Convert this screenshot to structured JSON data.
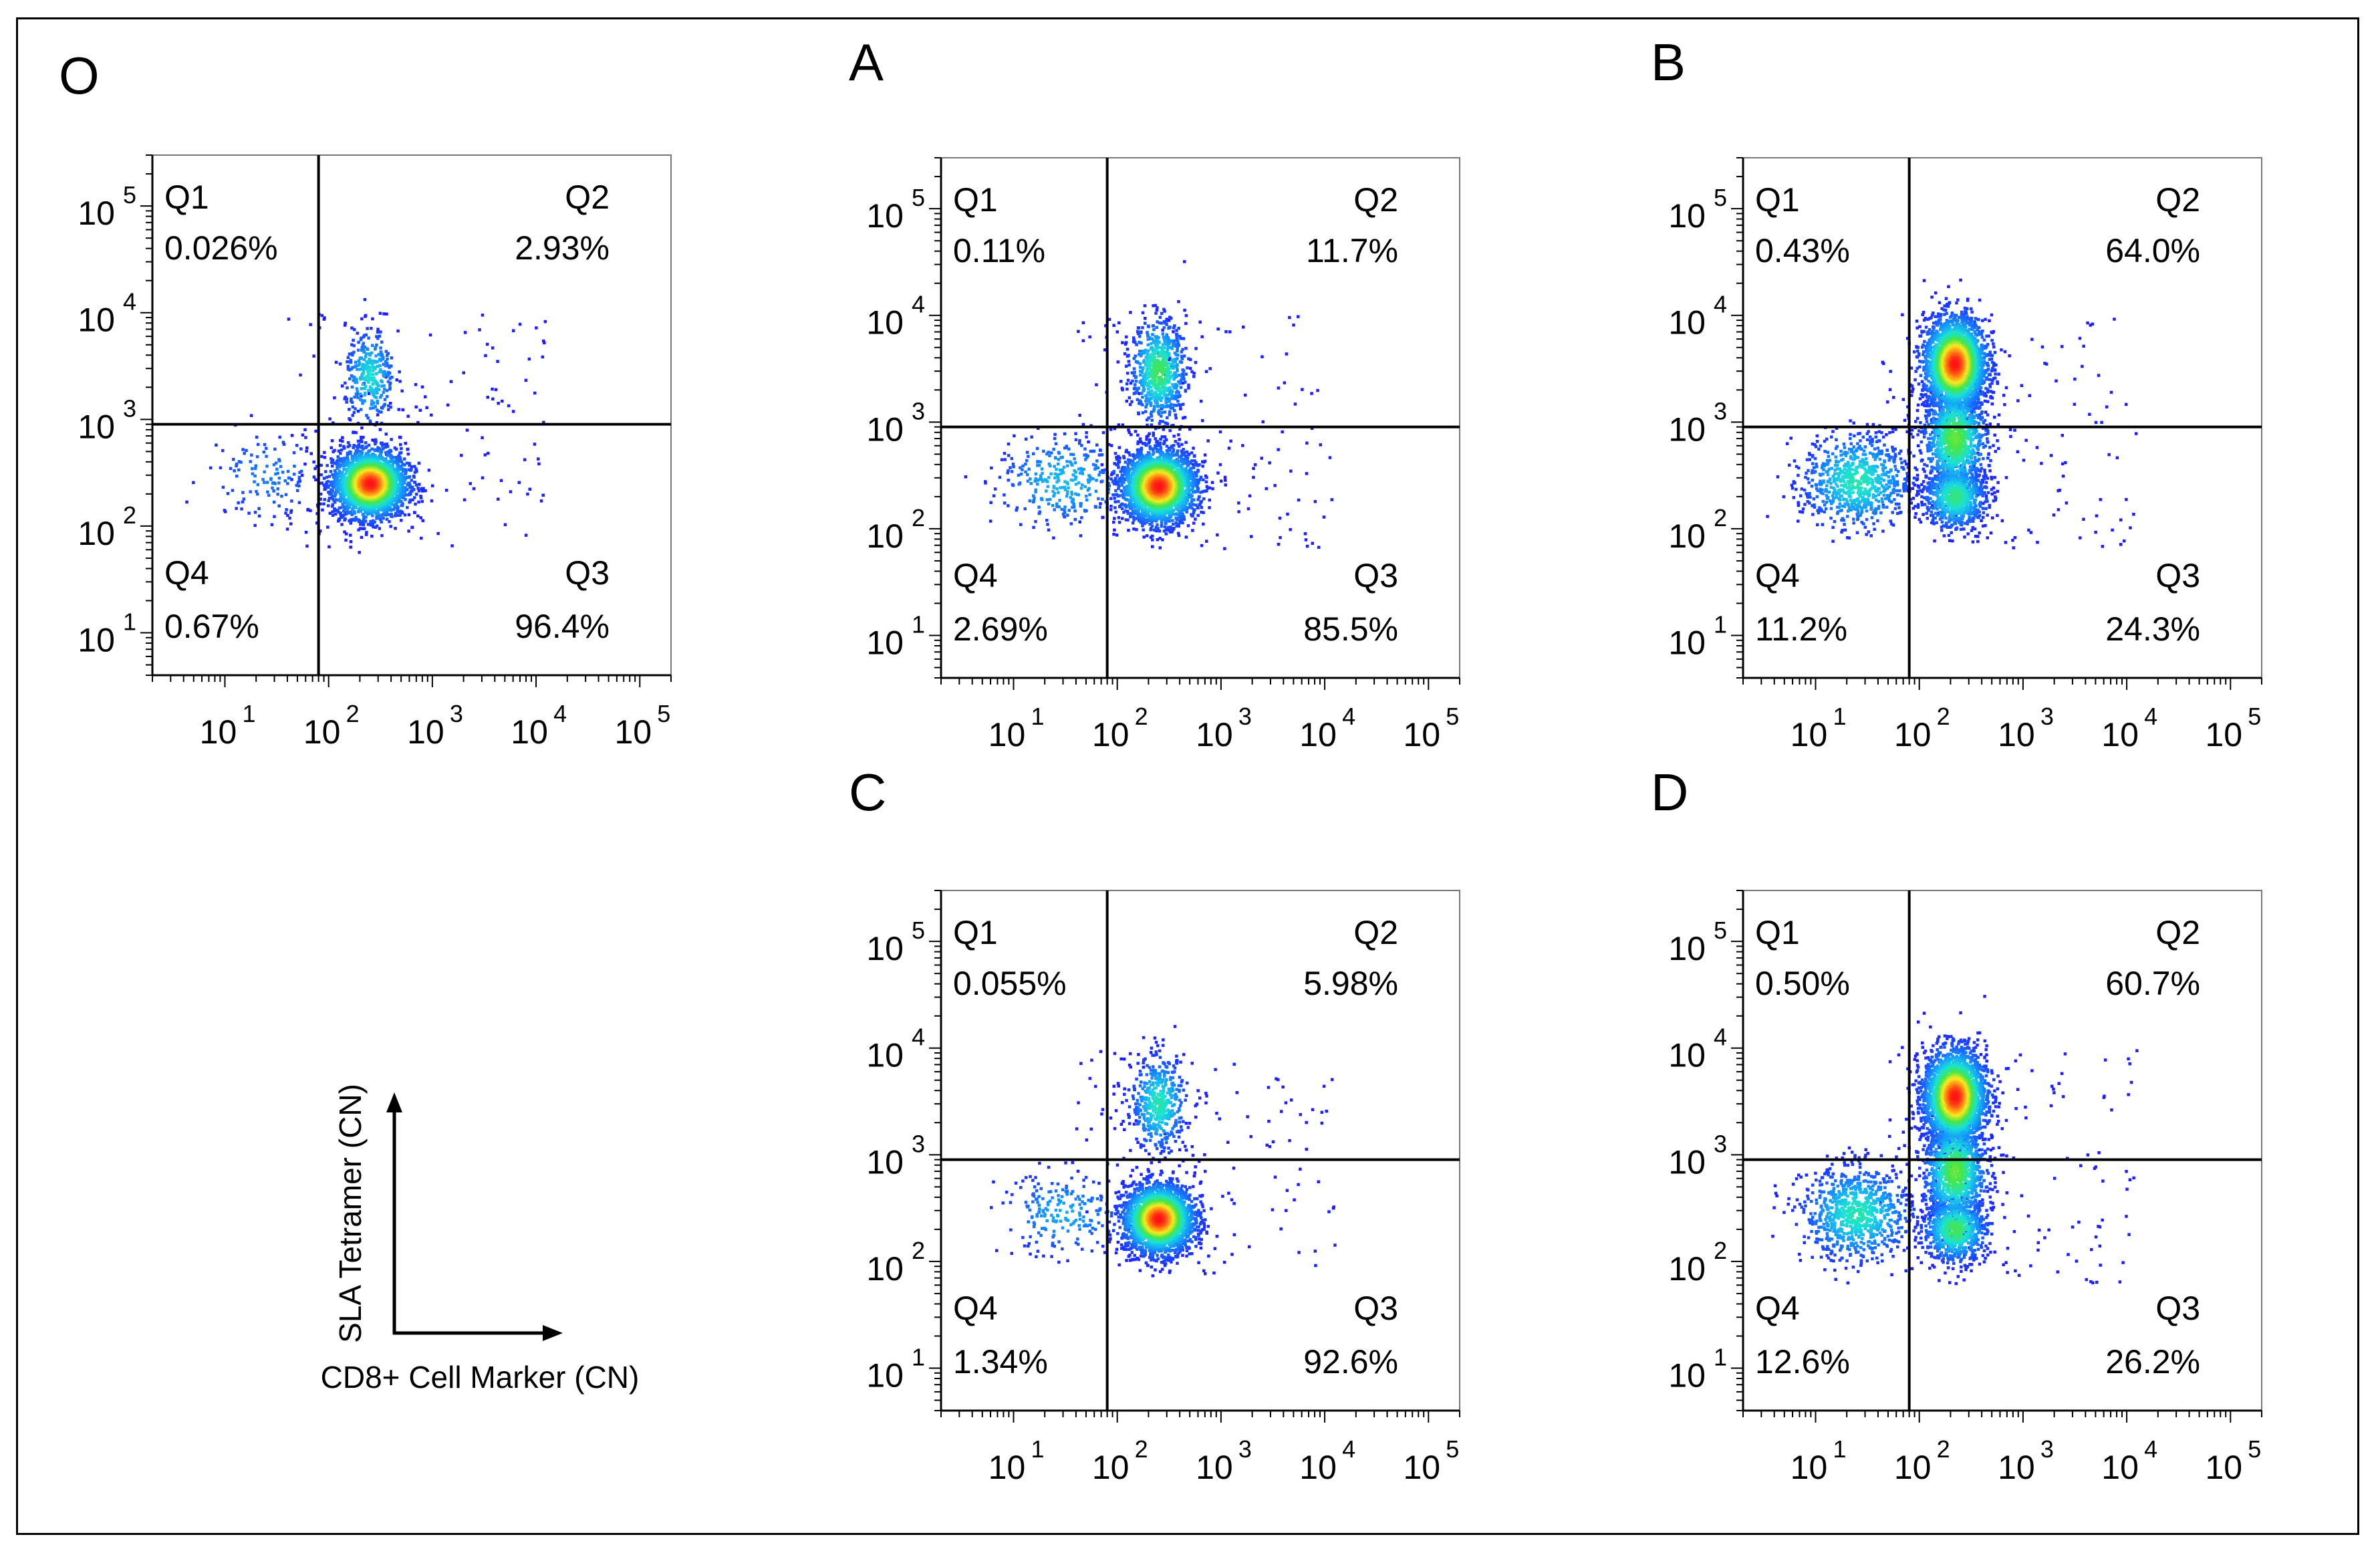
{
  "legend": {
    "y_label": "SLA Tetramer (CN)",
    "x_label": "CD8+ Cell Marker (CN)"
  },
  "tick_labels": {
    "base": "10",
    "exponents": [
      "1",
      "2",
      "3",
      "4",
      "5"
    ]
  },
  "colors": {
    "axis": "#000000",
    "density_low": "#1f28ff",
    "density_mid": "#19e5d2",
    "density_high": "#ff1a1a"
  },
  "chart_data": [
    {
      "type": "scatter",
      "panel": "O",
      "xscale": "log",
      "yscale": "log",
      "xlim": [
        2,
        200000
      ],
      "ylim": [
        4,
        300000
      ],
      "gate": {
        "x": 80,
        "y": 900
      },
      "quadrants": [
        {
          "name": "Q1",
          "percent": "0.026%"
        },
        {
          "name": "Q2",
          "percent": "2.93%"
        },
        {
          "name": "Q3",
          "percent": "96.4%"
        },
        {
          "name": "Q4",
          "percent": "0.67%"
        }
      ],
      "populations": [
        {
          "x": 250,
          "y": 250,
          "spread_x": 0.18,
          "spread_y": 0.16,
          "weight": 1.0,
          "peak": 1.0
        },
        {
          "x": 250,
          "y": 2500,
          "spread_x": 0.12,
          "spread_y": 0.22,
          "weight": 0.12,
          "peak": 0.45
        },
        {
          "x": 25,
          "y": 300,
          "spread_x": 0.28,
          "spread_y": 0.22,
          "weight": 0.05,
          "peak": 0.2
        }
      ]
    },
    {
      "type": "scatter",
      "panel": "A",
      "xscale": "log",
      "yscale": "log",
      "xlim": [
        2,
        200000
      ],
      "ylim": [
        4,
        300000
      ],
      "gate": {
        "x": 80,
        "y": 900
      },
      "quadrants": [
        {
          "name": "Q1",
          "percent": "0.11%"
        },
        {
          "name": "Q2",
          "percent": "11.7%"
        },
        {
          "name": "Q3",
          "percent": "85.5%"
        },
        {
          "name": "Q4",
          "percent": "2.69%"
        }
      ],
      "populations": [
        {
          "x": 250,
          "y": 250,
          "spread_x": 0.18,
          "spread_y": 0.17,
          "weight": 1.0,
          "peak": 1.0
        },
        {
          "x": 250,
          "y": 3000,
          "spread_x": 0.13,
          "spread_y": 0.24,
          "weight": 0.28,
          "peak": 0.6
        },
        {
          "x": 30,
          "y": 280,
          "spread_x": 0.32,
          "spread_y": 0.22,
          "weight": 0.12,
          "peak": 0.35
        }
      ]
    },
    {
      "type": "scatter",
      "panel": "B",
      "xscale": "log",
      "yscale": "log",
      "xlim": [
        2,
        200000
      ],
      "ylim": [
        4,
        300000
      ],
      "gate": {
        "x": 80,
        "y": 900
      },
      "quadrants": [
        {
          "name": "Q1",
          "percent": "0.43%"
        },
        {
          "name": "Q2",
          "percent": "64.0%"
        },
        {
          "name": "Q3",
          "percent": "24.3%"
        },
        {
          "name": "Q4",
          "percent": "11.2%"
        }
      ],
      "populations": [
        {
          "x": 220,
          "y": 3500,
          "spread_x": 0.15,
          "spread_y": 0.22,
          "weight": 1.0,
          "peak": 1.0
        },
        {
          "x": 220,
          "y": 700,
          "spread_x": 0.15,
          "spread_y": 0.25,
          "weight": 0.45,
          "peak": 0.65
        },
        {
          "x": 220,
          "y": 200,
          "spread_x": 0.15,
          "spread_y": 0.15,
          "weight": 0.3,
          "peak": 0.55
        },
        {
          "x": 25,
          "y": 280,
          "spread_x": 0.26,
          "spread_y": 0.22,
          "weight": 0.3,
          "peak": 0.5
        }
      ]
    },
    {
      "type": "scatter",
      "panel": "C",
      "xscale": "log",
      "yscale": "log",
      "xlim": [
        2,
        200000
      ],
      "ylim": [
        4,
        300000
      ],
      "gate": {
        "x": 80,
        "y": 900
      },
      "quadrants": [
        {
          "name": "Q1",
          "percent": "0.055%"
        },
        {
          "name": "Q2",
          "percent": "5.98%"
        },
        {
          "name": "Q3",
          "percent": "92.6%"
        },
        {
          "name": "Q4",
          "percent": "1.34%"
        }
      ],
      "populations": [
        {
          "x": 250,
          "y": 250,
          "spread_x": 0.17,
          "spread_y": 0.16,
          "weight": 1.0,
          "peak": 1.0
        },
        {
          "x": 250,
          "y": 3000,
          "spread_x": 0.13,
          "spread_y": 0.22,
          "weight": 0.18,
          "peak": 0.5
        },
        {
          "x": 30,
          "y": 280,
          "spread_x": 0.3,
          "spread_y": 0.2,
          "weight": 0.08,
          "peak": 0.3
        }
      ]
    },
    {
      "type": "scatter",
      "panel": "D",
      "xscale": "log",
      "yscale": "log",
      "xlim": [
        2,
        200000
      ],
      "ylim": [
        4,
        300000
      ],
      "gate": {
        "x": 80,
        "y": 900
      },
      "quadrants": [
        {
          "name": "Q1",
          "percent": "0.50%"
        },
        {
          "name": "Q2",
          "percent": "60.7%"
        },
        {
          "name": "Q3",
          "percent": "26.2%"
        },
        {
          "name": "Q4",
          "percent": "12.6%"
        }
      ],
      "populations": [
        {
          "x": 220,
          "y": 3500,
          "spread_x": 0.15,
          "spread_y": 0.22,
          "weight": 1.0,
          "peak": 1.0
        },
        {
          "x": 220,
          "y": 700,
          "spread_x": 0.15,
          "spread_y": 0.25,
          "weight": 0.45,
          "peak": 0.65
        },
        {
          "x": 220,
          "y": 200,
          "spread_x": 0.15,
          "spread_y": 0.15,
          "weight": 0.32,
          "peak": 0.6
        },
        {
          "x": 25,
          "y": 280,
          "spread_x": 0.26,
          "spread_y": 0.22,
          "weight": 0.32,
          "peak": 0.5
        }
      ]
    }
  ]
}
